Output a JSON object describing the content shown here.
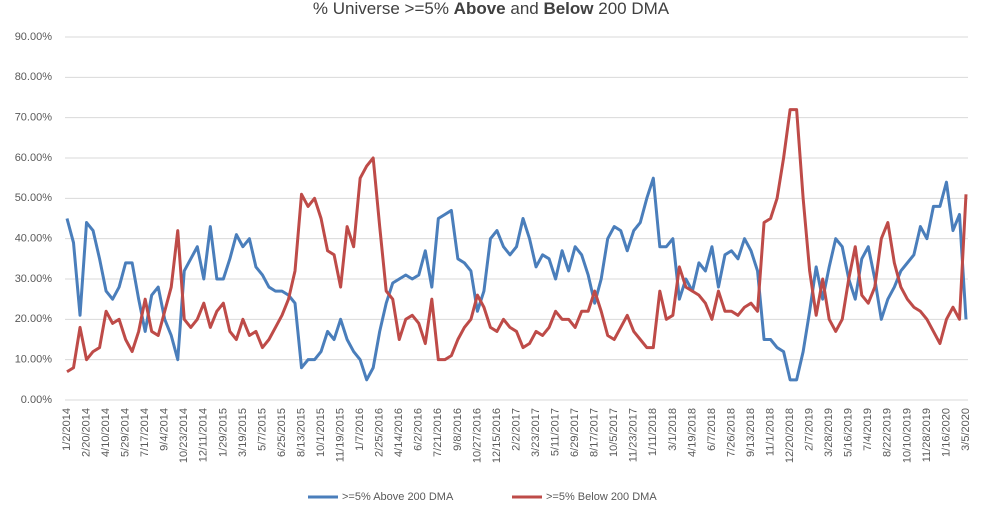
{
  "chart_data": {
    "type": "line",
    "title_parts": [
      {
        "text": "% Universe >=5% ",
        "bold": false
      },
      {
        "text": "Above",
        "bold": true
      },
      {
        "text": " and ",
        "bold": false
      },
      {
        "text": "Below",
        "bold": true
      },
      {
        "text": " 200 DMA",
        "bold": false
      }
    ],
    "categories": [
      "1/2/2014",
      null,
      null,
      "2/20/2014",
      null,
      null,
      "4/10/2014",
      null,
      null,
      "5/29/2014",
      null,
      null,
      "7/17/2014",
      null,
      null,
      "9/4/2014",
      null,
      null,
      "10/23/2014",
      null,
      null,
      "12/11/2014",
      null,
      null,
      "1/29/2015",
      null,
      null,
      "3/19/2015",
      null,
      null,
      "5/7/2015",
      null,
      null,
      "6/25/2015",
      null,
      null,
      "8/13/2015",
      null,
      null,
      "10/1/2015",
      null,
      null,
      "11/19/2015",
      null,
      null,
      "1/7/2016",
      null,
      null,
      "2/25/2016",
      null,
      null,
      "4/14/2016",
      null,
      null,
      "6/2/2016",
      null,
      null,
      "7/21/2016",
      null,
      null,
      "9/8/2016",
      null,
      null,
      "10/27/2016",
      null,
      null,
      "12/15/2016",
      null,
      null,
      "2/2/2017",
      null,
      null,
      "3/23/2017",
      null,
      null,
      "5/11/2017",
      null,
      null,
      "6/29/2017",
      null,
      null,
      "8/17/2017",
      null,
      null,
      "10/5/2017",
      null,
      null,
      "11/23/2017",
      null,
      null,
      "1/11/2018",
      null,
      null,
      "3/1/2018",
      null,
      null,
      "4/19/2018",
      null,
      null,
      "6/7/2018",
      null,
      null,
      "7/26/2018",
      null,
      null,
      "9/13/2018",
      null,
      null,
      "11/1/2018",
      null,
      null,
      "12/20/2018",
      null,
      null,
      "2/7/2019",
      null,
      null,
      "3/28/2019",
      null,
      null,
      "5/16/2019",
      null,
      null,
      "7/4/2019",
      null,
      null,
      "8/22/2019",
      null,
      null,
      "10/10/2019",
      null,
      null,
      "11/28/2019",
      null,
      null,
      "1/16/2020",
      null,
      null,
      "3/5/2020"
    ],
    "series": [
      {
        "name": ">=5% Above 200 DMA",
        "color": "#4a7ebb",
        "values": [
          45,
          39,
          21,
          44,
          42,
          35,
          27,
          25,
          28,
          34,
          34,
          25,
          17,
          26,
          28,
          20,
          16,
          10,
          32,
          35,
          38,
          30,
          43,
          30,
          30,
          35,
          41,
          38,
          40,
          33,
          31,
          28,
          27,
          27,
          26,
          24,
          8,
          10,
          10,
          12,
          17,
          15,
          20,
          15,
          12,
          10,
          5,
          8,
          17,
          24,
          29,
          30,
          31,
          30,
          31,
          37,
          28,
          45,
          46,
          47,
          35,
          34,
          32,
          22,
          27,
          40,
          42,
          38,
          36,
          38,
          45,
          40,
          33,
          36,
          35,
          30,
          37,
          32,
          38,
          36,
          31,
          24,
          30,
          40,
          43,
          42,
          37,
          42,
          44,
          50,
          55,
          38,
          38,
          40,
          25,
          30,
          27,
          34,
          32,
          38,
          28,
          36,
          37,
          35,
          40,
          37,
          32,
          15,
          15,
          13,
          12,
          5,
          5,
          12,
          22,
          33,
          25,
          33,
          40,
          38,
          30,
          25,
          35,
          38,
          30,
          20,
          25,
          28,
          32,
          34,
          36,
          43,
          40,
          48,
          48,
          54,
          42,
          46,
          20
        ]
      },
      {
        "name": ">=5% Below 200 DMA",
        "color": "#be4b48",
        "values": [
          7,
          8,
          18,
          10,
          12,
          13,
          22,
          19,
          20,
          15,
          12,
          17,
          25,
          17,
          16,
          22,
          28,
          42,
          20,
          18,
          20,
          24,
          18,
          22,
          24,
          17,
          15,
          20,
          16,
          17,
          13,
          15,
          18,
          21,
          25,
          32,
          51,
          48,
          50,
          45,
          37,
          36,
          28,
          43,
          38,
          55,
          58,
          60,
          43,
          27,
          25,
          15,
          20,
          21,
          19,
          14,
          25,
          10,
          10,
          11,
          15,
          18,
          20,
          26,
          23,
          18,
          17,
          20,
          18,
          17,
          13,
          14,
          17,
          16,
          18,
          22,
          20,
          20,
          18,
          22,
          22,
          27,
          22,
          16,
          15,
          18,
          21,
          17,
          15,
          13,
          13,
          27,
          20,
          21,
          33,
          28,
          27,
          26,
          24,
          20,
          27,
          22,
          22,
          21,
          23,
          24,
          22,
          44,
          45,
          50,
          60,
          72,
          72,
          50,
          32,
          21,
          30,
          20,
          17,
          20,
          30,
          38,
          26,
          24,
          28,
          40,
          44,
          34,
          28,
          25,
          23,
          22,
          20,
          17,
          14,
          20,
          23,
          20,
          51
        ]
      }
    ],
    "ylim": [
      0,
      90
    ],
    "yticks": [
      {
        "value": 0,
        "label": "0.00%"
      },
      {
        "value": 10,
        "label": "10.00%"
      },
      {
        "value": 20,
        "label": "20.00%"
      },
      {
        "value": 30,
        "label": "30.00%"
      },
      {
        "value": 40,
        "label": "40.00%"
      },
      {
        "value": 50,
        "label": "50.00%"
      },
      {
        "value": 60,
        "label": "60.00%"
      },
      {
        "value": 70,
        "label": "70.00%"
      },
      {
        "value": 80,
        "label": "80.00%"
      },
      {
        "value": 90,
        "label": "90.00%"
      }
    ],
    "grid": true,
    "legend": "bottom"
  }
}
